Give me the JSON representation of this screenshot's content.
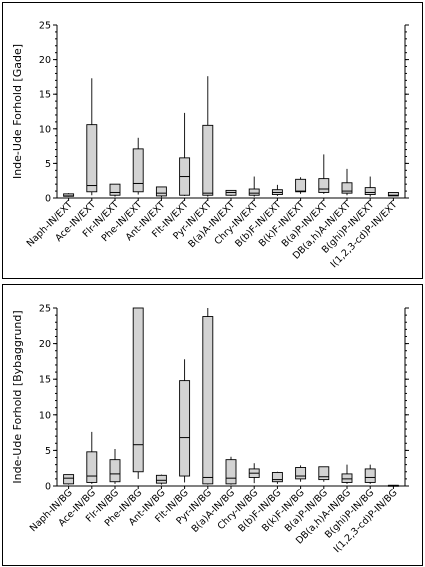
{
  "chart_data": [
    {
      "type": "box",
      "ylabel": "Inde-Ude Forhold [Gade]",
      "xlabel": "",
      "ylim": [
        0,
        25
      ],
      "yticks": [
        0,
        5,
        10,
        15,
        20,
        25
      ],
      "grid": false,
      "box_fill": "#d3d3d3",
      "categories": [
        "Naph-IN/EXT",
        "Ace-IN/EXT",
        "Flr-IN/EXT",
        "Phe-IN/EXT",
        "Ant-IN/EXT",
        "Flt-IN/EXT",
        "Pyr-IN/EXT",
        "B(a)A-IN/EXT",
        "Chry-IN/EXT",
        "B(b)F-IN/EXT",
        "B(k)F-IN/EXT",
        "B(a)P-IN/EXT",
        "DB(a,h)A-IN/EXT",
        "B(ghi)P-IN/EXT",
        "I(1,2,3-cd)P-IN/EXT"
      ],
      "boxes": [
        {
          "min": 0.2,
          "q1": 0.25,
          "median": 0.3,
          "q3": 0.6,
          "max": 0.7
        },
        {
          "min": 0.4,
          "q1": 0.9,
          "median": 1.8,
          "q3": 10.6,
          "max": 17.3
        },
        {
          "min": 0.2,
          "q1": 0.4,
          "median": 0.8,
          "q3": 2.0,
          "max": 2.0
        },
        {
          "min": 0.5,
          "q1": 0.9,
          "median": 2.1,
          "q3": 7.1,
          "max": 8.7
        },
        {
          "min": 0.1,
          "q1": 0.3,
          "median": 0.7,
          "q3": 1.6,
          "max": 1.6
        },
        {
          "min": 0.3,
          "q1": 0.4,
          "median": 3.1,
          "q3": 5.8,
          "max": 12.3
        },
        {
          "min": 0.2,
          "q1": 0.4,
          "median": 0.7,
          "q3": 10.5,
          "max": 17.6
        },
        {
          "min": 0.3,
          "q1": 0.4,
          "median": 0.8,
          "q3": 1.1,
          "max": 1.1
        },
        {
          "min": 0.2,
          "q1": 0.4,
          "median": 0.7,
          "q3": 1.3,
          "max": 3.1
        },
        {
          "min": 0.3,
          "q1": 0.5,
          "median": 0.8,
          "q3": 1.2,
          "max": 1.9
        },
        {
          "min": 0.6,
          "q1": 0.9,
          "median": 1.0,
          "q3": 2.7,
          "max": 3.0
        },
        {
          "min": 0.6,
          "q1": 0.8,
          "median": 1.3,
          "q3": 2.8,
          "max": 6.3
        },
        {
          "min": 0.4,
          "q1": 0.7,
          "median": 1.0,
          "q3": 2.2,
          "max": 4.2
        },
        {
          "min": 0.2,
          "q1": 0.5,
          "median": 0.8,
          "q3": 1.5,
          "max": 3.1
        },
        {
          "min": 0.3,
          "q1": 0.3,
          "median": 0.4,
          "q3": 0.8,
          "max": 0.8
        }
      ]
    },
    {
      "type": "box",
      "ylabel": "Inde-Ude Forhold [Bybaggrund]",
      "xlabel": "",
      "ylim": [
        0,
        25
      ],
      "yticks": [
        0,
        5,
        10,
        15,
        20,
        25
      ],
      "grid": false,
      "box_fill": "#d3d3d3",
      "categories": [
        "Naph-IN/BG",
        "Ace-IN/BG",
        "Flr-IN/BG",
        "Phe-IN/BG",
        "Ant-IN/BG",
        "Flt-IN/BG",
        "Pyr-IN/BG",
        "B(a)A-IN/BG",
        "Chry-IN/BG",
        "B(b)F-IN/BG",
        "B(k)F-IN/BG",
        "B(a)P-IN/BG",
        "DB(a,h)A-IN/BG",
        "B(ghi)P-IN/BG",
        "I(1,2,3-cd)P-IN/BG"
      ],
      "boxes": [
        {
          "min": 0.2,
          "q1": 0.3,
          "median": 1.1,
          "q3": 1.6,
          "max": 1.6
        },
        {
          "min": 0.3,
          "q1": 0.5,
          "median": 1.4,
          "q3": 4.8,
          "max": 7.6
        },
        {
          "min": 0.3,
          "q1": 0.6,
          "median": 1.7,
          "q3": 3.7,
          "max": 5.2
        },
        {
          "min": 1.0,
          "q1": 2.0,
          "median": 5.8,
          "q3": 25.0,
          "max": 25.0
        },
        {
          "min": 0.2,
          "q1": 0.4,
          "median": 0.8,
          "q3": 1.5,
          "max": 1.6
        },
        {
          "min": 0.5,
          "q1": 1.4,
          "median": 6.8,
          "q3": 14.8,
          "max": 17.8
        },
        {
          "min": 0.2,
          "q1": 0.3,
          "median": 1.2,
          "q3": 23.8,
          "max": 25.0
        },
        {
          "min": 0.2,
          "q1": 0.3,
          "median": 1.1,
          "q3": 3.7,
          "max": 4.1
        },
        {
          "min": 0.4,
          "q1": 1.2,
          "median": 1.8,
          "q3": 2.4,
          "max": 3.2
        },
        {
          "min": 0.3,
          "q1": 0.6,
          "median": 0.9,
          "q3": 1.9,
          "max": 2.0
        },
        {
          "min": 0.6,
          "q1": 1.0,
          "median": 1.4,
          "q3": 2.6,
          "max": 2.9
        },
        {
          "min": 0.6,
          "q1": 0.9,
          "median": 1.3,
          "q3": 2.7,
          "max": 2.7
        },
        {
          "min": 0.3,
          "q1": 0.5,
          "median": 1.0,
          "q3": 1.7,
          "max": 3.0
        },
        {
          "min": 0.3,
          "q1": 0.5,
          "median": 1.2,
          "q3": 2.4,
          "max": 3.0
        },
        {
          "min": 0.05,
          "q1": 0.05,
          "median": 0.08,
          "q3": 0.1,
          "max": 0.1
        }
      ]
    }
  ]
}
